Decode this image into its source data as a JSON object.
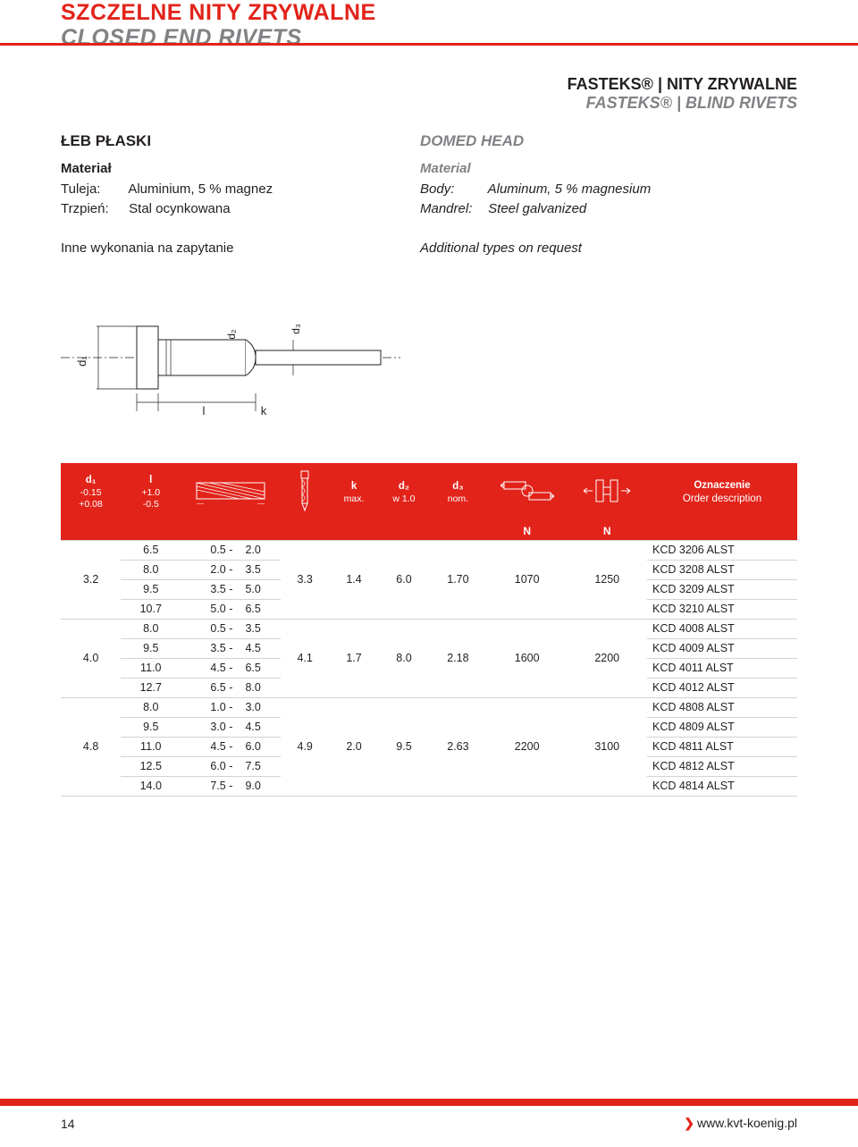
{
  "colors": {
    "accent": "#e2231a",
    "grey": "#808285",
    "text": "#231f20",
    "rule": "#d1d3d4",
    "white": "#ffffff"
  },
  "header": {
    "title_main": "SZCZELNE NITY ZRYWALNE",
    "title_sub": "CLOSED END RIVETS",
    "right_line1": "FASTEKS® | NITY ZRYWALNE",
    "right_line2": "FASTEKS® | BLIND RIVETS"
  },
  "left": {
    "head": "ŁEB PŁASKI",
    "mat_label": "Materiał",
    "body_lbl": "Tuleja:",
    "body_val": "Aluminium, 5 % magnez",
    "mandrel_lbl": "Trzpień:",
    "mandrel_val": "Stal ocynkowana",
    "note": "Inne wykonania na zapytanie"
  },
  "right": {
    "head": "DOMED HEAD",
    "mat_label": "Material",
    "body_lbl": "Body:",
    "body_val": "Aluminum, 5 % magnesium",
    "mandrel_lbl": "Mandrel:",
    "mandrel_val": "Steel galvanized",
    "note": "Additional types on request"
  },
  "table": {
    "hdr": {
      "d1": "d₁",
      "d1_tol1": "-0.15",
      "d1_tol2": "+0.08",
      "l": "l",
      "l_tol1": "+1.0",
      "l_tol2": "-0.5",
      "k": "k",
      "k_sub": "max.",
      "d2": "d₂",
      "d2_sub": "w 1.0",
      "d3": "d₃",
      "d3_sub": "nom.",
      "ord1": "Oznaczenie",
      "ord2": "Order description",
      "N": "N"
    },
    "groups": [
      {
        "d1": "3.2",
        "d3": "3.3",
        "k": "1.4",
        "d2": "6.0",
        "d3v": "1.70",
        "shear": "1070",
        "tensile": "1250",
        "rows": [
          {
            "l": "6.5",
            "rl": "0.5",
            "rr": "2.0",
            "ord": "KCD 3206 ALST"
          },
          {
            "l": "8.0",
            "rl": "2.0",
            "rr": "3.5",
            "ord": "KCD 3208 ALST"
          },
          {
            "l": "9.5",
            "rl": "3.5",
            "rr": "5.0",
            "ord": "KCD 3209 ALST"
          },
          {
            "l": "10.7",
            "rl": "5.0",
            "rr": "6.5",
            "ord": "KCD 3210 ALST"
          }
        ]
      },
      {
        "d1": "4.0",
        "d3": "4.1",
        "k": "1.7",
        "d2": "8.0",
        "d3v": "2.18",
        "shear": "1600",
        "tensile": "2200",
        "rows": [
          {
            "l": "8.0",
            "rl": "0.5",
            "rr": "3.5",
            "ord": "KCD 4008 ALST"
          },
          {
            "l": "9.5",
            "rl": "3.5",
            "rr": "4.5",
            "ord": "KCD 4009 ALST"
          },
          {
            "l": "11.0",
            "rl": "4.5",
            "rr": "6.5",
            "ord": "KCD 4011 ALST"
          },
          {
            "l": "12.7",
            "rl": "6.5",
            "rr": "8.0",
            "ord": "KCD 4012 ALST"
          }
        ]
      },
      {
        "d1": "4.8",
        "d3": "4.9",
        "k": "2.0",
        "d2": "9.5",
        "d3v": "2.63",
        "shear": "2200",
        "tensile": "3100",
        "rows": [
          {
            "l": "8.0",
            "rl": "1.0",
            "rr": "3.0",
            "ord": "KCD 4808 ALST"
          },
          {
            "l": "9.5",
            "rl": "3.0",
            "rr": "4.5",
            "ord": "KCD 4809 ALST"
          },
          {
            "l": "11.0",
            "rl": "4.5",
            "rr": "6.0",
            "ord": "KCD 4811 ALST"
          },
          {
            "l": "12.5",
            "rl": "6.0",
            "rr": "7.5",
            "ord": "KCD 4812 ALST"
          },
          {
            "l": "14.0",
            "rl": "7.5",
            "rr": "9.0",
            "ord": "KCD 4814 ALST"
          }
        ]
      }
    ]
  },
  "footer": {
    "page": "14",
    "url": "www.kvt-koenig.pl"
  },
  "diagram": {
    "d1": "d₁",
    "d2": "d₂",
    "d3": "d₃",
    "l": "l",
    "k": "k"
  }
}
